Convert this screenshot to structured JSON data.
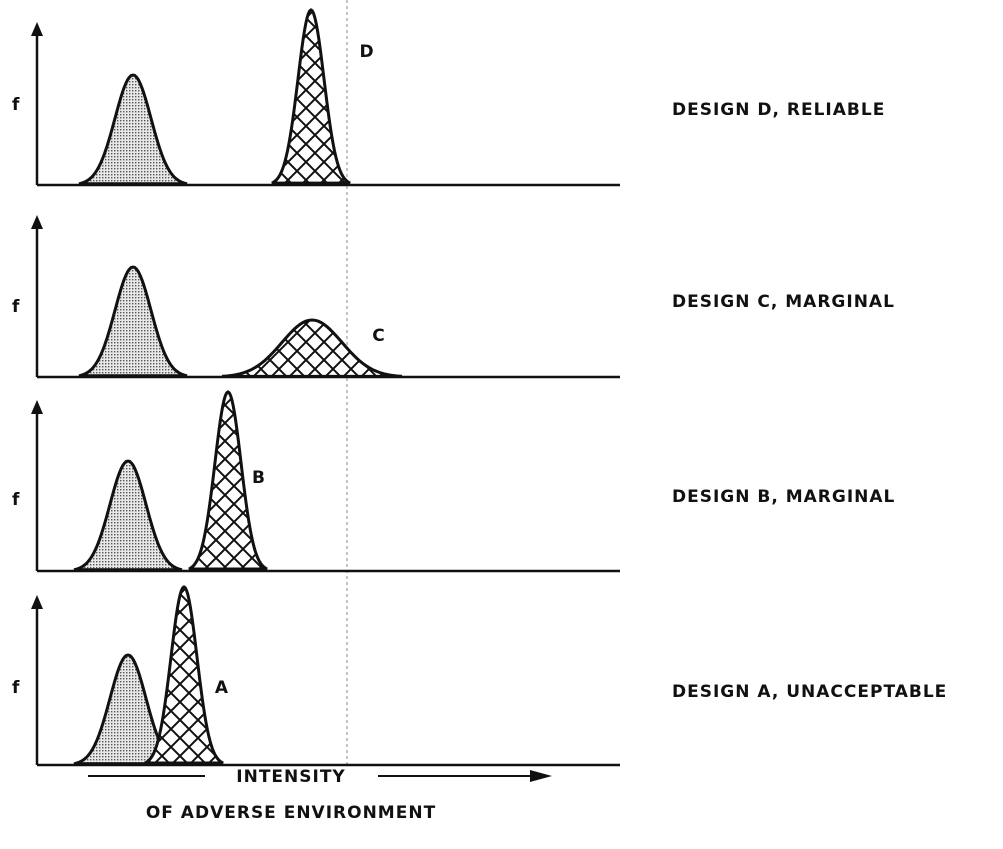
{
  "panels": [
    {
      "y_label": "f",
      "curve_label": "D",
      "caption": "DESIGN D, RELIABLE"
    },
    {
      "y_label": "f",
      "curve_label": "C",
      "caption": "DESIGN C, MARGINAL"
    },
    {
      "y_label": "f",
      "curve_label": "B",
      "caption": "DESIGN B, MARGINAL"
    },
    {
      "y_label": "f",
      "curve_label": "A",
      "caption": "DESIGN A, UNACCEPTABLE"
    }
  ],
  "x_axis": {
    "line1": "INTENSITY",
    "line2": "OF ADVERSE ENVIRONMENT"
  }
}
